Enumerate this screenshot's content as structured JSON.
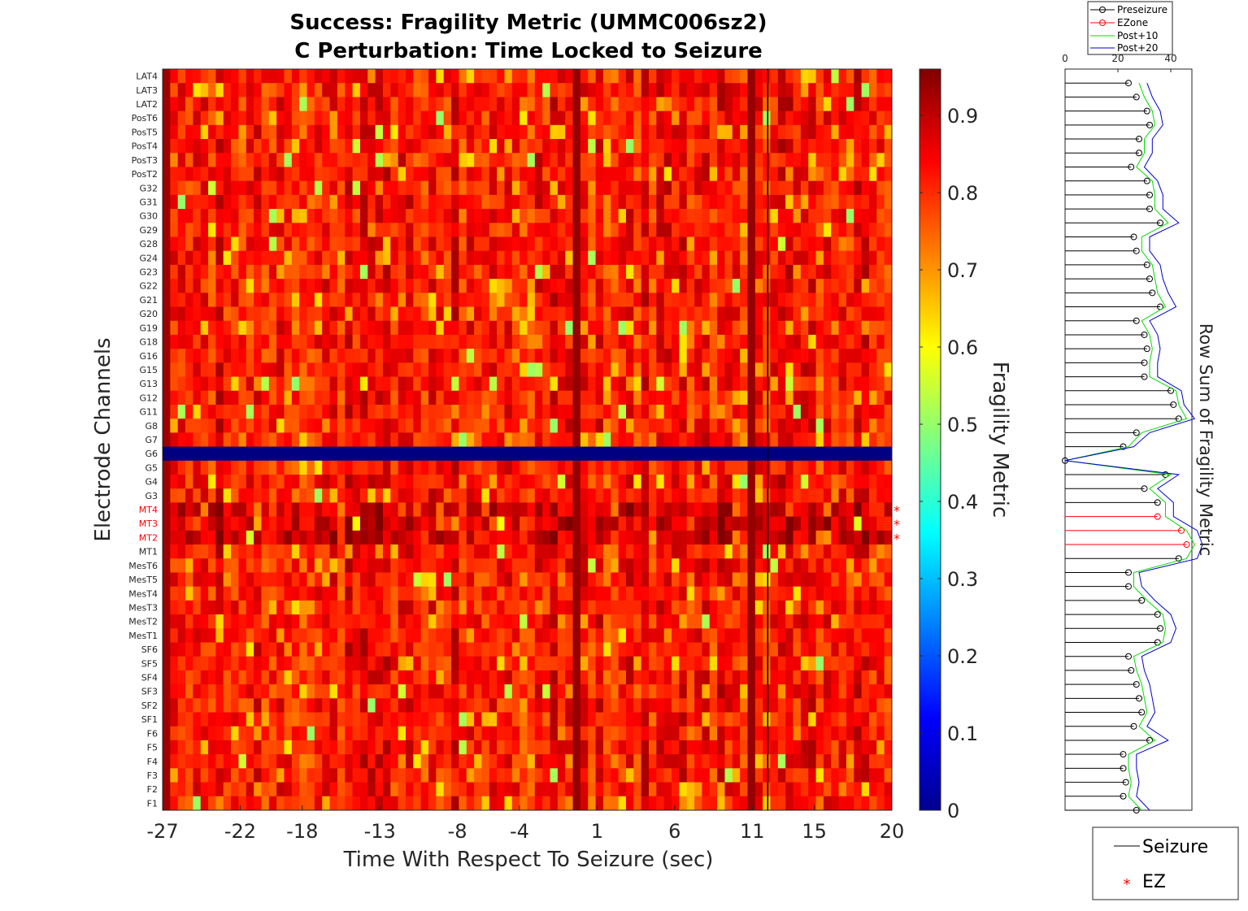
{
  "chart_data": [
    {
      "type": "heatmap",
      "title": "Success: Fragility Metric (UMMC006sz2)",
      "subtitle": "C Perturbation:  Time Locked to Seizure",
      "xlabel": "Time With Respect To Seizure (sec)",
      "ylabel": "Electrode Channels",
      "xlim": [
        -27,
        20
      ],
      "x_ticks": [
        "-27",
        "-22",
        "-18",
        "-13",
        "-8",
        "-4",
        "1",
        "6",
        "11",
        "15",
        "20"
      ],
      "x_tick_values": [
        -27,
        -22,
        -18,
        -13,
        -8,
        -4,
        1,
        6,
        11,
        15,
        20
      ],
      "channels": [
        "LAT4",
        "LAT3",
        "LAT2",
        "PosT6",
        "PosT5",
        "PosT4",
        "PosT3",
        "PosT2",
        "G32",
        "G31",
        "G30",
        "G29",
        "G28",
        "G24",
        "G23",
        "G22",
        "G21",
        "G20",
        "G19",
        "G18",
        "G16",
        "G15",
        "G13",
        "G12",
        "G11",
        "G8",
        "G7",
        "G6",
        "G5",
        "G4",
        "G3",
        "MT4",
        "MT3",
        "MT2",
        "MT1",
        "MesT6",
        "MesT5",
        "MesT4",
        "MesT3",
        "MesT2",
        "MesT1",
        "SF6",
        "SF5",
        "SF4",
        "SF3",
        "SF2",
        "SF1",
        "F6",
        "F5",
        "F4",
        "F3",
        "F2",
        "F1"
      ],
      "ez_channels": [
        "MT4",
        "MT3",
        "MT2"
      ],
      "ez_label_color": "#ff0000",
      "time_columns": 96,
      "seizure_onset_time": 12,
      "zero_channel": "G6",
      "value_range_observed": [
        0.0,
        0.96
      ],
      "high_fragility_columns_time": [
        -27,
        -0.7,
        10.8
      ],
      "colormap": "jet",
      "colorbar": {
        "label": "Fragility Metric",
        "range": [
          0,
          0.96
        ],
        "ticks": [
          "0",
          "0.1",
          "0.2",
          "0.3",
          "0.4",
          "0.5",
          "0.6",
          "0.7",
          "0.8",
          "0.9"
        ],
        "tick_values": [
          0,
          0.1,
          0.2,
          0.3,
          0.4,
          0.5,
          0.6,
          0.7,
          0.8,
          0.9
        ]
      }
    },
    {
      "type": "line",
      "ylabel": "Row Sum of Fragility Metric",
      "xlim": [
        0,
        48
      ],
      "x_ticks": [
        "0",
        "20",
        "40"
      ],
      "x_tick_values": [
        0,
        20,
        40
      ],
      "series": [
        {
          "name": "Preseizure",
          "color": "#000000",
          "values": [
            24,
            27,
            31,
            32,
            28,
            28,
            25,
            31,
            32,
            32,
            36,
            26,
            27,
            31,
            32,
            33,
            36,
            27,
            30,
            31,
            30,
            30,
            40,
            41,
            43,
            27,
            22,
            0,
            38,
            30,
            35,
            35,
            44,
            46,
            43,
            24,
            24,
            29,
            35,
            36,
            35,
            24,
            25,
            27,
            28,
            29,
            26,
            32,
            22,
            22,
            23,
            22,
            27
          ]
        },
        {
          "name": "EZone",
          "color": "#ff0000"
        },
        {
          "name": "Post+10",
          "color": "#00dd00",
          "values": [
            28,
            30,
            33,
            34,
            30,
            30,
            27,
            33,
            34,
            34,
            39,
            29,
            29,
            33,
            34,
            35,
            38,
            29,
            32,
            33,
            32,
            32,
            42,
            43,
            46,
            29,
            24,
            0,
            40,
            32,
            38,
            38,
            46,
            49,
            46,
            26,
            26,
            31,
            37,
            38,
            37,
            26,
            27,
            29,
            30,
            31,
            28,
            34,
            24,
            24,
            25,
            24,
            29
          ]
        },
        {
          "name": "Post+20",
          "color": "#0000cc",
          "values": [
            31,
            33,
            36,
            37,
            33,
            33,
            30,
            35,
            37,
            37,
            43,
            32,
            32,
            36,
            37,
            39,
            42,
            32,
            35,
            36,
            35,
            35,
            44,
            45,
            49,
            32,
            26,
            0,
            43,
            35,
            41,
            41,
            50,
            52,
            50,
            28,
            29,
            34,
            40,
            42,
            40,
            29,
            30,
            32,
            33,
            34,
            31,
            39,
            27,
            27,
            28,
            27,
            32
          ]
        }
      ],
      "ez_values": {
        "MT4": 35,
        "MT3": 44,
        "MT2": 46
      }
    }
  ],
  "bottom_legend": {
    "seizure_label": "Seizure",
    "ez_label": "EZ"
  }
}
